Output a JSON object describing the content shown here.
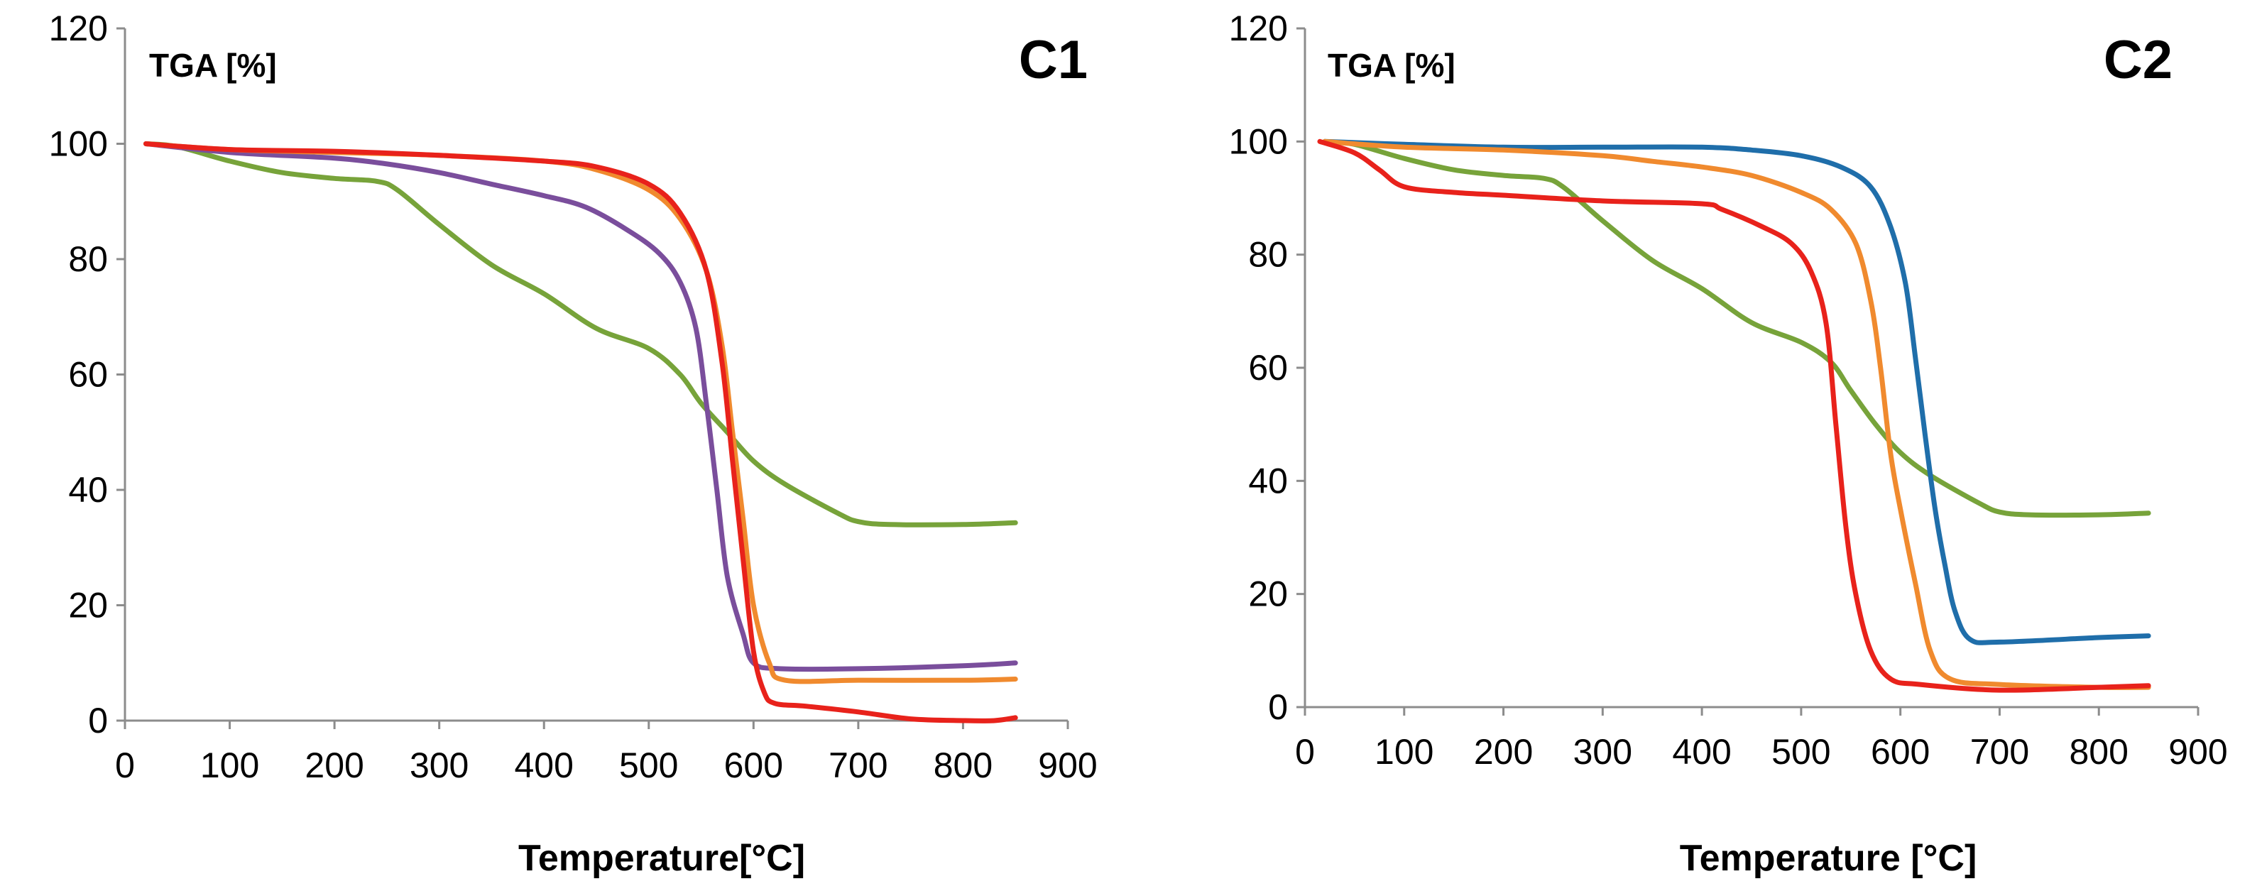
{
  "chart_data": [
    {
      "type": "line",
      "title": "C1",
      "ylabel": "TGA [%]",
      "xlabel": "Temperature[°C]",
      "xlim": [
        0,
        900
      ],
      "ylim": [
        0,
        120
      ],
      "xticks": [
        0,
        100,
        200,
        300,
        400,
        500,
        600,
        700,
        800,
        900
      ],
      "yticks": [
        0,
        20,
        40,
        60,
        80,
        100,
        120
      ],
      "grid": false,
      "series": [
        {
          "name": "green",
          "color": "#77A33A",
          "points": [
            [
              20,
              100
            ],
            [
              50,
              99.5
            ],
            [
              100,
              97
            ],
            [
              150,
              95
            ],
            [
              200,
              94
            ],
            [
              240,
              93.5
            ],
            [
              260,
              92
            ],
            [
              300,
              86
            ],
            [
              350,
              79
            ],
            [
              400,
              74
            ],
            [
              450,
              68
            ],
            [
              500,
              64.5
            ],
            [
              530,
              60
            ],
            [
              550,
              55
            ],
            [
              575,
              50
            ],
            [
              600,
              45
            ],
            [
              630,
              41
            ],
            [
              680,
              36
            ],
            [
              700,
              34.5
            ],
            [
              730,
              34
            ],
            [
              800,
              34
            ],
            [
              850,
              34.3
            ]
          ]
        },
        {
          "name": "purple",
          "color": "#7A4E9C",
          "points": [
            [
              20,
              100
            ],
            [
              100,
              98.5
            ],
            [
              200,
              97.5
            ],
            [
              250,
              96.5
            ],
            [
              300,
              95
            ],
            [
              350,
              93
            ],
            [
              400,
              91
            ],
            [
              440,
              89
            ],
            [
              480,
              85
            ],
            [
              510,
              81
            ],
            [
              530,
              76
            ],
            [
              545,
              68
            ],
            [
              555,
              55
            ],
            [
              565,
              40
            ],
            [
              575,
              25
            ],
            [
              590,
              15
            ],
            [
              600,
              10
            ],
            [
              625,
              9
            ],
            [
              700,
              9
            ],
            [
              800,
              9.5
            ],
            [
              850,
              10
            ]
          ]
        },
        {
          "name": "orange",
          "color": "#F08A2E",
          "points": [
            [
              20,
              100
            ],
            [
              100,
              99
            ],
            [
              200,
              98.5
            ],
            [
              300,
              98
            ],
            [
              400,
              97
            ],
            [
              450,
              95.5
            ],
            [
              500,
              92
            ],
            [
              530,
              87
            ],
            [
              555,
              78
            ],
            [
              570,
              65
            ],
            [
              580,
              50
            ],
            [
              590,
              35
            ],
            [
              600,
              20
            ],
            [
              615,
              10
            ],
            [
              630,
              7
            ],
            [
              700,
              7
            ],
            [
              800,
              7
            ],
            [
              850,
              7.2
            ]
          ]
        },
        {
          "name": "red",
          "color": "#E8221B",
          "points": [
            [
              20,
              100
            ],
            [
              100,
              99
            ],
            [
              200,
              98.7
            ],
            [
              300,
              98
            ],
            [
              400,
              97
            ],
            [
              450,
              96
            ],
            [
              500,
              93
            ],
            [
              530,
              88
            ],
            [
              555,
              78
            ],
            [
              570,
              62
            ],
            [
              580,
              45
            ],
            [
              590,
              28
            ],
            [
              600,
              12
            ],
            [
              610,
              5
            ],
            [
              620,
              3
            ],
            [
              650,
              2.5
            ],
            [
              700,
              1.5
            ],
            [
              750,
              0.3
            ],
            [
              800,
              0
            ],
            [
              830,
              0
            ],
            [
              850,
              0.5
            ]
          ]
        }
      ]
    },
    {
      "type": "line",
      "title": "C2",
      "ylabel": "TGA [%]",
      "xlabel": "Temperature [°C]",
      "xlim": [
        0,
        900
      ],
      "ylim": [
        0,
        120
      ],
      "xticks": [
        0,
        100,
        200,
        300,
        400,
        500,
        600,
        700,
        800,
        900
      ],
      "yticks": [
        0,
        20,
        40,
        60,
        80,
        100,
        120
      ],
      "grid": false,
      "series": [
        {
          "name": "green",
          "color": "#77A33A",
          "points": [
            [
              20,
              100
            ],
            [
              50,
              99.5
            ],
            [
              100,
              97
            ],
            [
              150,
              95
            ],
            [
              200,
              94
            ],
            [
              240,
              93.5
            ],
            [
              260,
              92
            ],
            [
              300,
              86
            ],
            [
              350,
              79
            ],
            [
              400,
              74
            ],
            [
              450,
              68
            ],
            [
              500,
              64.5
            ],
            [
              530,
              61
            ],
            [
              550,
              56
            ],
            [
              575,
              50
            ],
            [
              600,
              45
            ],
            [
              630,
              41
            ],
            [
              680,
              36
            ],
            [
              700,
              34.5
            ],
            [
              730,
              34
            ],
            [
              800,
              34
            ],
            [
              850,
              34.3
            ]
          ]
        },
        {
          "name": "blue",
          "color": "#1F6EAA",
          "points": [
            [
              20,
              100
            ],
            [
              100,
              99.5
            ],
            [
              200,
              99
            ],
            [
              300,
              99
            ],
            [
              400,
              99
            ],
            [
              450,
              98.5
            ],
            [
              500,
              97.5
            ],
            [
              540,
              95.5
            ],
            [
              570,
              92
            ],
            [
              590,
              85
            ],
            [
              605,
              75
            ],
            [
              615,
              62
            ],
            [
              625,
              48
            ],
            [
              635,
              35
            ],
            [
              645,
              25
            ],
            [
              655,
              17
            ],
            [
              670,
              12
            ],
            [
              700,
              11.5
            ],
            [
              800,
              12.3
            ],
            [
              850,
              12.6
            ]
          ]
        },
        {
          "name": "orange",
          "color": "#F08A2E",
          "points": [
            [
              20,
              100
            ],
            [
              100,
              99
            ],
            [
              200,
              98.5
            ],
            [
              300,
              97.5
            ],
            [
              350,
              96.5
            ],
            [
              400,
              95.5
            ],
            [
              450,
              94
            ],
            [
              500,
              91
            ],
            [
              530,
              88
            ],
            [
              555,
              82
            ],
            [
              570,
              72
            ],
            [
              580,
              60
            ],
            [
              590,
              45
            ],
            [
              600,
              35
            ],
            [
              615,
              22
            ],
            [
              630,
              10
            ],
            [
              650,
              5
            ],
            [
              700,
              4
            ],
            [
              800,
              3.5
            ],
            [
              850,
              3.5
            ]
          ]
        },
        {
          "name": "red",
          "color": "#E8221B",
          "points": [
            [
              15,
              100
            ],
            [
              50,
              98
            ],
            [
              75,
              95
            ],
            [
              100,
              92
            ],
            [
              150,
              91
            ],
            [
              200,
              90.5
            ],
            [
              300,
              89.5
            ],
            [
              400,
              89
            ],
            [
              420,
              88
            ],
            [
              460,
              85
            ],
            [
              490,
              82
            ],
            [
              510,
              77
            ],
            [
              525,
              68
            ],
            [
              535,
              50
            ],
            [
              545,
              32
            ],
            [
              555,
              20
            ],
            [
              570,
              10
            ],
            [
              590,
              5
            ],
            [
              620,
              4
            ],
            [
              700,
              3
            ],
            [
              800,
              3.5
            ],
            [
              850,
              3.8
            ]
          ]
        }
      ]
    }
  ]
}
